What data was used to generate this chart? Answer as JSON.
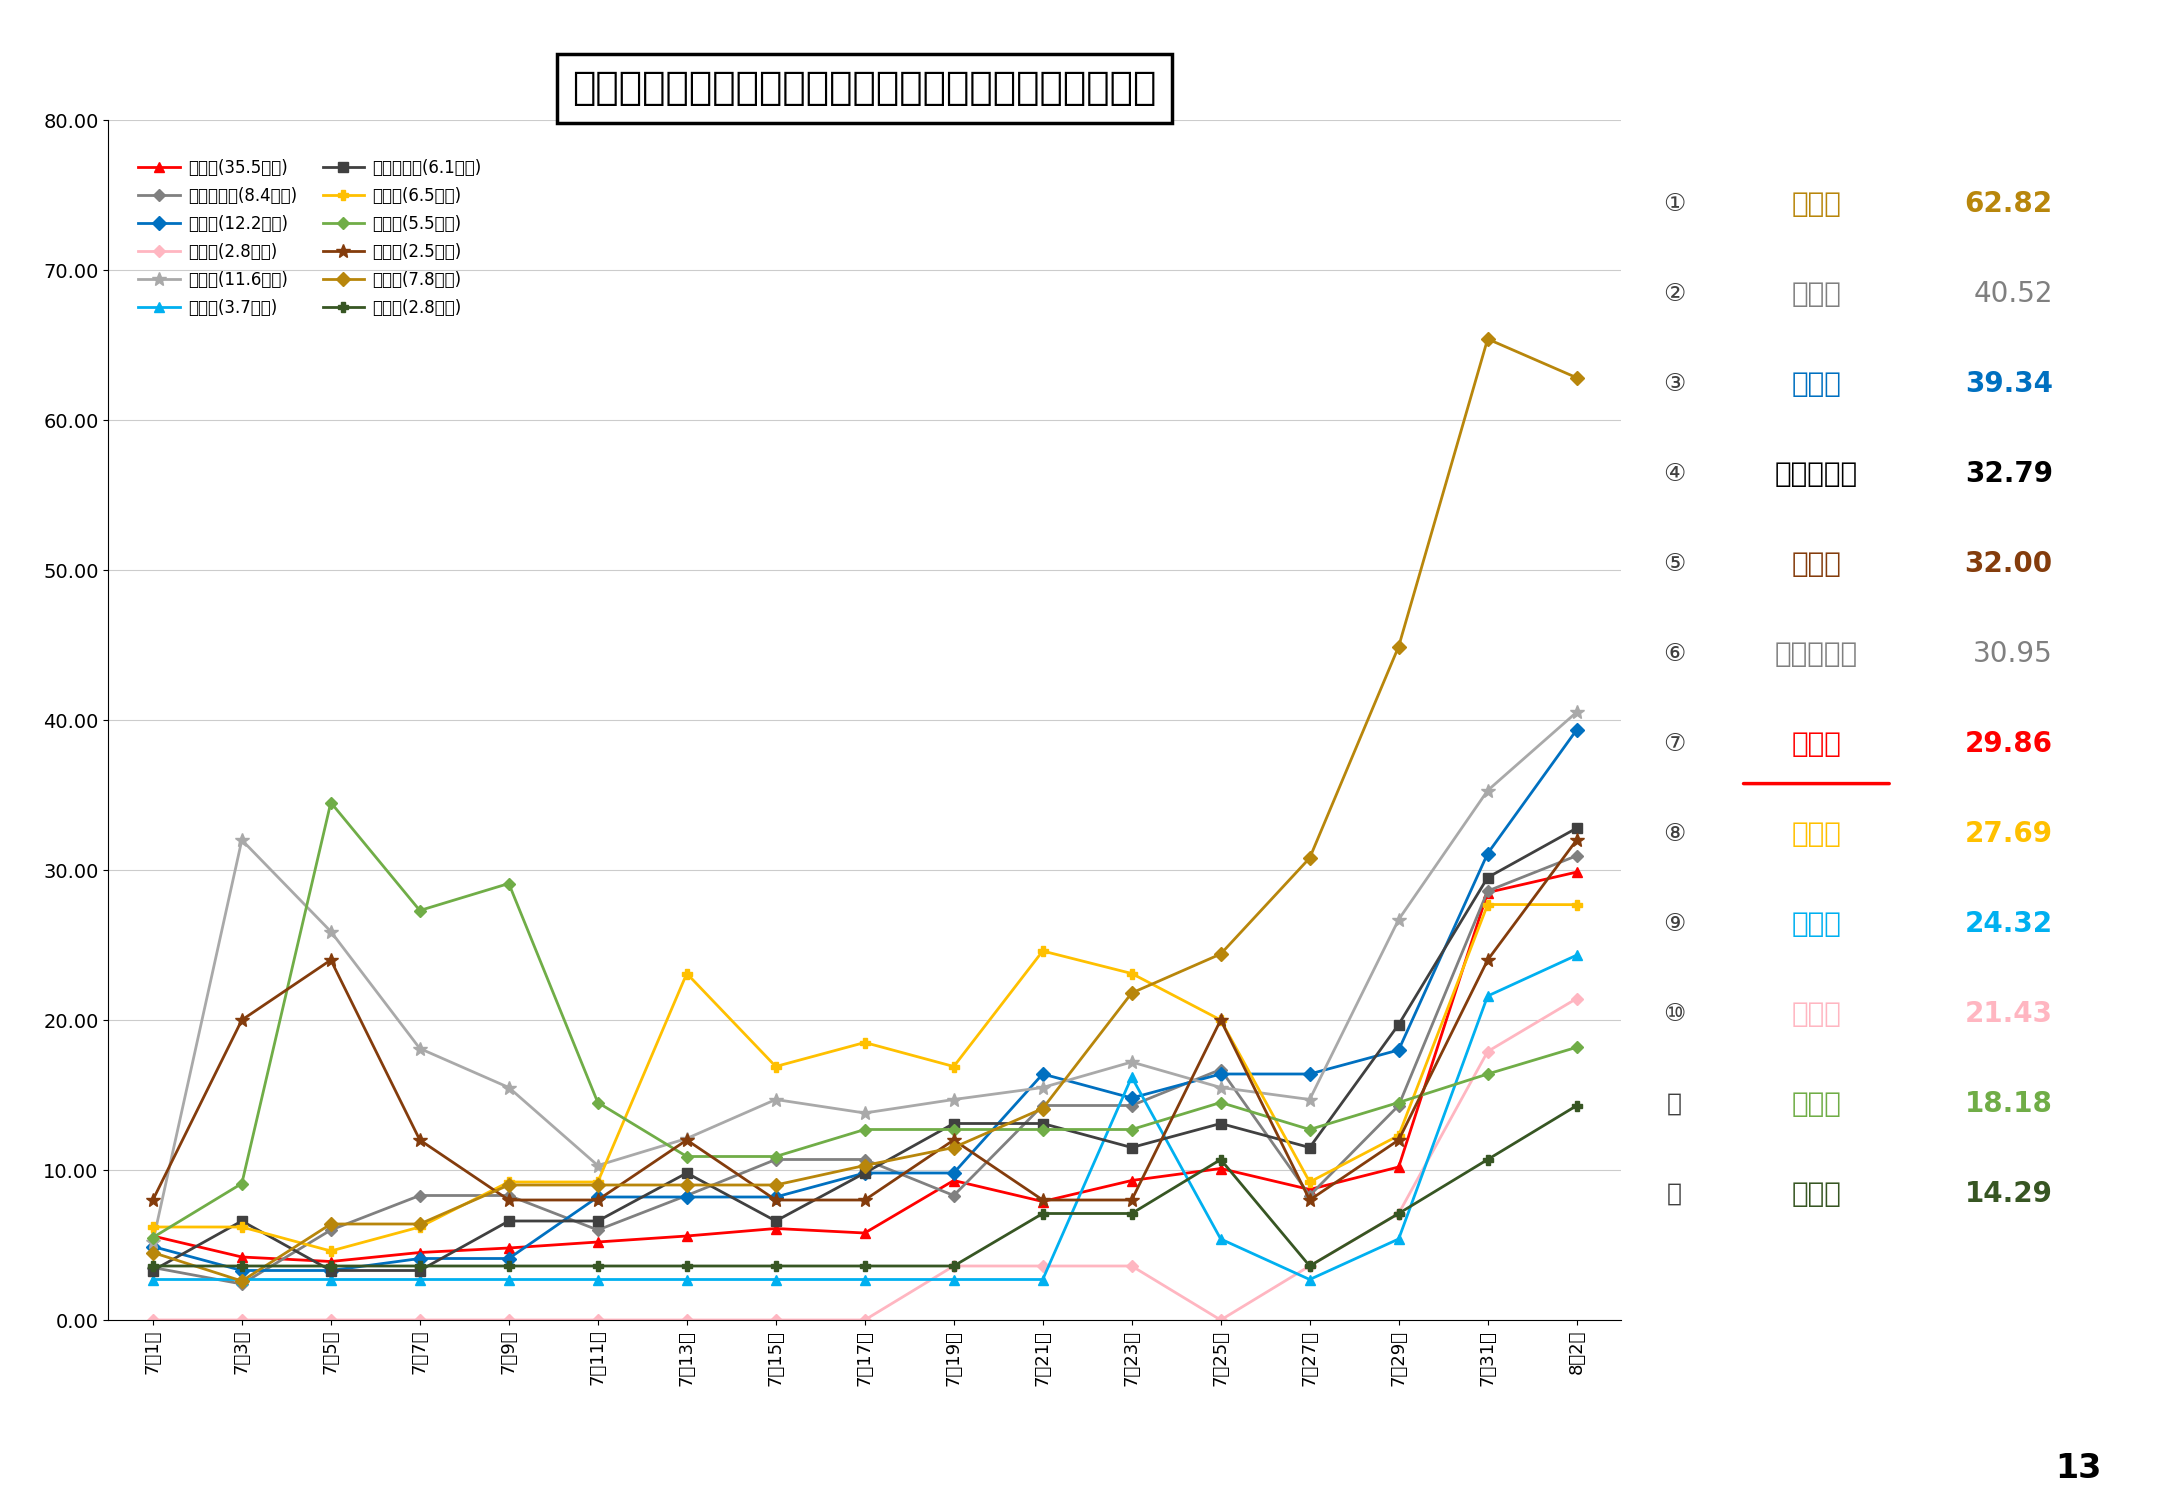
{
  "title": "県内１２市の直近１週間の１０万人当たり陽性者数推移",
  "x_labels": [
    "7月1日",
    "7月3日",
    "7月5日",
    "7月7日",
    "7月9日",
    "7月11日",
    "7月13日",
    "7月15日",
    "7月17日",
    "7月19日",
    "7月21日",
    "7月23日",
    "7月25日",
    "7月27日",
    "7月29日",
    "7月31日",
    "8月2日"
  ],
  "ylim": [
    0,
    80
  ],
  "yticks": [
    0,
    10,
    20,
    30,
    40,
    50,
    60,
    70,
    80
  ],
  "series": [
    {
      "name": "奈良市(35.5万人)",
      "color": "#FF0000",
      "marker": "^",
      "linestyle": "-",
      "linewidth": 2,
      "markersize": 7,
      "data": [
        5.6,
        4.2,
        3.9,
        4.5,
        4.8,
        5.2,
        5.6,
        6.1,
        5.8,
        9.3,
        7.9,
        9.3,
        10.1,
        8.7,
        10.2,
        28.5,
        29.86
      ]
    },
    {
      "name": "大和郡山市(8.4万人)",
      "color": "#808080",
      "marker": "D",
      "linestyle": "-",
      "linewidth": 2,
      "markersize": 6,
      "data": [
        3.5,
        2.4,
        6.0,
        8.3,
        8.3,
        6.0,
        8.3,
        10.7,
        10.7,
        8.3,
        14.3,
        14.3,
        16.7,
        8.3,
        14.3,
        28.6,
        30.95
      ]
    },
    {
      "name": "橿原市(12.2万人)",
      "color": "#0070C0",
      "marker": "D",
      "linestyle": "-",
      "linewidth": 2,
      "markersize": 7,
      "data": [
        4.9,
        3.3,
        3.3,
        4.1,
        4.1,
        8.2,
        8.2,
        8.2,
        9.8,
        9.8,
        16.4,
        14.8,
        16.4,
        16.4,
        18.0,
        31.1,
        39.34
      ]
    },
    {
      "name": "五條市(2.8万人)",
      "color": "#FFB6C1",
      "marker": "D",
      "linestyle": "-",
      "linewidth": 2,
      "markersize": 6,
      "data": [
        0.0,
        0.0,
        0.0,
        0.0,
        0.0,
        0.0,
        0.0,
        0.0,
        0.0,
        3.6,
        3.6,
        3.6,
        0.0,
        3.6,
        7.1,
        17.9,
        21.43
      ]
    },
    {
      "name": "生駒市(11.6万人)",
      "color": "#A9A9A9",
      "marker": "*",
      "linestyle": "-",
      "linewidth": 2,
      "markersize": 10,
      "data": [
        5.2,
        32.0,
        25.9,
        18.1,
        15.5,
        10.3,
        12.1,
        14.7,
        13.8,
        14.7,
        15.5,
        17.2,
        15.5,
        14.7,
        26.7,
        35.3,
        40.52
      ]
    },
    {
      "name": "葛城市(3.7万人)",
      "color": "#00B0F0",
      "marker": "^",
      "linestyle": "-",
      "linewidth": 2,
      "markersize": 7,
      "data": [
        2.7,
        2.7,
        2.7,
        2.7,
        2.7,
        2.7,
        2.7,
        2.7,
        2.7,
        2.7,
        2.7,
        16.2,
        5.4,
        2.7,
        5.4,
        21.6,
        24.32
      ]
    },
    {
      "name": "大和高田市(6.1万人)",
      "color": "#404040",
      "marker": "s",
      "linestyle": "-",
      "linewidth": 2,
      "markersize": 7,
      "data": [
        3.3,
        6.6,
        3.3,
        3.3,
        6.6,
        6.6,
        9.8,
        6.6,
        9.8,
        13.1,
        13.1,
        11.5,
        13.1,
        11.5,
        19.7,
        29.5,
        32.79
      ]
    },
    {
      "name": "天理市(6.5万人)",
      "color": "#FFC000",
      "marker": "P",
      "linestyle": "-",
      "linewidth": 2,
      "markersize": 7,
      "data": [
        6.2,
        6.2,
        4.6,
        6.2,
        9.2,
        9.2,
        23.1,
        16.9,
        18.5,
        16.9,
        24.6,
        23.1,
        20.0,
        9.2,
        12.3,
        27.7,
        27.69
      ]
    },
    {
      "name": "桜井市(5.5万人)",
      "color": "#70AD47",
      "marker": "D",
      "linestyle": "-",
      "linewidth": 2,
      "markersize": 6,
      "data": [
        5.5,
        9.1,
        34.5,
        27.3,
        29.1,
        14.5,
        10.9,
        10.9,
        12.7,
        12.7,
        12.7,
        12.7,
        14.5,
        12.7,
        14.5,
        16.4,
        18.18
      ]
    },
    {
      "name": "御所市(2.5万人)",
      "color": "#843C0C",
      "marker": "*",
      "linestyle": "-",
      "linewidth": 2,
      "markersize": 10,
      "data": [
        8.0,
        20.0,
        24.0,
        12.0,
        8.0,
        8.0,
        12.0,
        8.0,
        8.0,
        12.0,
        8.0,
        8.0,
        20.0,
        8.0,
        12.0,
        24.0,
        32.0
      ]
    },
    {
      "name": "香芝市(7.8万人)",
      "color": "#B8860B",
      "marker": "D",
      "linestyle": "-",
      "linewidth": 2,
      "markersize": 7,
      "data": [
        4.5,
        2.6,
        6.4,
        6.4,
        9.0,
        9.0,
        9.0,
        9.0,
        10.3,
        11.5,
        14.1,
        21.8,
        24.4,
        30.8,
        44.9,
        65.4,
        62.82
      ]
    },
    {
      "name": "宇陀市(2.8万人)",
      "color": "#375623",
      "marker": "P",
      "linestyle": "-",
      "linewidth": 2,
      "markersize": 7,
      "data": [
        3.6,
        3.6,
        3.6,
        3.6,
        3.6,
        3.6,
        3.6,
        3.6,
        3.6,
        3.6,
        7.1,
        7.1,
        10.7,
        3.6,
        7.1,
        10.7,
        14.29
      ]
    }
  ],
  "ranking": [
    {
      "rank": "①",
      "name": "香芝市",
      "value": "62.82",
      "color": "#B8860B",
      "bold": true,
      "underline": false,
      "nara": false
    },
    {
      "rank": "②",
      "name": "生駒市",
      "value": "40.52",
      "color": "#808080",
      "bold": false,
      "underline": false,
      "nara": false
    },
    {
      "rank": "③",
      "name": "橿原市",
      "value": "39.34",
      "color": "#0070C0",
      "bold": true,
      "underline": false,
      "nara": false
    },
    {
      "rank": "④",
      "name": "大和高田市",
      "value": "32.79",
      "color": "#000000",
      "bold": true,
      "underline": false,
      "nara": false
    },
    {
      "rank": "⑤",
      "name": "御所市",
      "value": "32.00",
      "color": "#843C0C",
      "bold": true,
      "underline": false,
      "nara": false
    },
    {
      "rank": "⑥",
      "name": "大和郡山市",
      "value": "30.95",
      "color": "#808080",
      "bold": false,
      "underline": false,
      "nara": false
    },
    {
      "rank": "⑦",
      "name": "奈良市",
      "value": "29.86",
      "color": "#FF0000",
      "bold": true,
      "underline": true,
      "nara": true
    },
    {
      "rank": "⑧",
      "name": "天理市",
      "value": "27.69",
      "color": "#FFC000",
      "bold": true,
      "underline": false,
      "nara": false
    },
    {
      "rank": "⑨",
      "name": "葛城市",
      "value": "24.32",
      "color": "#00B0F0",
      "bold": true,
      "underline": false,
      "nara": false
    },
    {
      "rank": "⑩",
      "name": "五條市",
      "value": "21.43",
      "color": "#FFB6C1",
      "bold": true,
      "underline": false,
      "nara": false
    },
    {
      "rank": "⑪",
      "name": "桜井市",
      "value": "18.18",
      "color": "#70AD47",
      "bold": true,
      "underline": false,
      "nara": false
    },
    {
      "rank": "⑫",
      "name": "宇陀市",
      "value": "14.29",
      "color": "#375623",
      "bold": true,
      "underline": false,
      "nara": false
    }
  ],
  "page_number": "13"
}
